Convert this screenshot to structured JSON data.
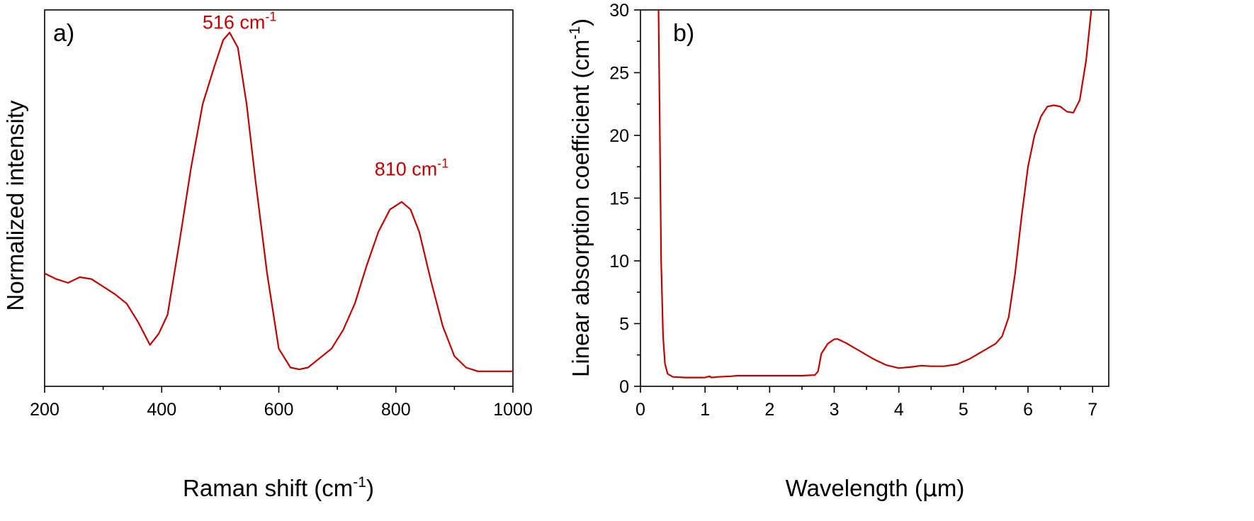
{
  "chart_data": [
    {
      "type": "line",
      "panel_label": "a)",
      "xlabel": "Raman shift (cm",
      "xlabel_sup": "-1",
      "xlabel_end": ")",
      "ylabel": "Normalized intensity",
      "xlim": [
        200,
        1000
      ],
      "ylim": [
        0,
        1
      ],
      "xticks": [
        200,
        400,
        600,
        800,
        1000
      ],
      "xminor": [
        300,
        500,
        700,
        900
      ],
      "yticks": [],
      "color": "#c00000",
      "annotations": [
        {
          "text": "516 cm",
          "sup": "-1",
          "x": 516,
          "y": 0.92
        },
        {
          "text": "810 cm",
          "sup": "-1",
          "x": 810,
          "y": 0.53
        }
      ],
      "series": [
        {
          "name": "Raman spectrum",
          "x": [
            200,
            220,
            240,
            260,
            280,
            300,
            320,
            340,
            360,
            380,
            395,
            410,
            430,
            450,
            470,
            490,
            505,
            516,
            530,
            545,
            560,
            580,
            600,
            620,
            635,
            650,
            670,
            690,
            710,
            730,
            750,
            770,
            790,
            810,
            825,
            840,
            860,
            880,
            900,
            920,
            940,
            960,
            980,
            1000
          ],
          "y": [
            0.3,
            0.285,
            0.275,
            0.29,
            0.285,
            0.265,
            0.245,
            0.22,
            0.17,
            0.11,
            0.14,
            0.19,
            0.38,
            0.58,
            0.75,
            0.85,
            0.92,
            0.94,
            0.9,
            0.75,
            0.55,
            0.3,
            0.1,
            0.05,
            0.045,
            0.05,
            0.075,
            0.1,
            0.15,
            0.22,
            0.32,
            0.41,
            0.47,
            0.49,
            0.47,
            0.41,
            0.28,
            0.16,
            0.08,
            0.05,
            0.04,
            0.04,
            0.04,
            0.04
          ]
        }
      ]
    },
    {
      "type": "line",
      "panel_label": "b)",
      "xlabel": "Wavelength (",
      "xlabel_mu": "μ",
      "xlabel_end": "m)",
      "ylabel": "Linear absorption coefficient (cm",
      "ylabel_sup": "-1",
      "ylabel_end": ")",
      "xlim": [
        0,
        7.25
      ],
      "ylim": [
        0,
        30
      ],
      "xticks": [
        0,
        1,
        2,
        3,
        4,
        5,
        6,
        7
      ],
      "xminor": [
        0.5,
        1.5,
        2.5,
        3.5,
        4.5,
        5.5,
        6.5
      ],
      "yticks": [
        0,
        5,
        10,
        15,
        20,
        25,
        30
      ],
      "yminor": [
        2.5,
        7.5,
        12.5,
        17.5,
        22.5,
        27.5
      ],
      "color": "#c00000",
      "series": [
        {
          "name": "Absorption coefficient",
          "x": [
            0.28,
            0.3,
            0.32,
            0.35,
            0.38,
            0.42,
            0.5,
            0.7,
            1.0,
            1.07,
            1.1,
            1.2,
            1.4,
            1.5,
            2.0,
            2.5,
            2.7,
            2.75,
            2.8,
            2.9,
            3.0,
            3.05,
            3.2,
            3.4,
            3.6,
            3.8,
            4.0,
            4.2,
            4.35,
            4.5,
            4.7,
            4.9,
            5.1,
            5.3,
            5.5,
            5.6,
            5.7,
            5.8,
            5.9,
            6.0,
            6.1,
            6.2,
            6.3,
            6.4,
            6.5,
            6.6,
            6.7,
            6.8,
            6.9,
            6.98
          ],
          "y": [
            30,
            20,
            10,
            4,
            1.8,
            1.0,
            0.75,
            0.7,
            0.7,
            0.8,
            0.7,
            0.75,
            0.8,
            0.85,
            0.85,
            0.85,
            0.9,
            1.2,
            2.6,
            3.4,
            3.75,
            3.78,
            3.4,
            2.8,
            2.2,
            1.7,
            1.45,
            1.55,
            1.65,
            1.6,
            1.6,
            1.75,
            2.2,
            2.8,
            3.4,
            4.0,
            5.5,
            9.0,
            13.5,
            17.5,
            20.0,
            21.5,
            22.3,
            22.4,
            22.3,
            21.9,
            21.8,
            22.8,
            26.0,
            30
          ]
        }
      ]
    }
  ]
}
